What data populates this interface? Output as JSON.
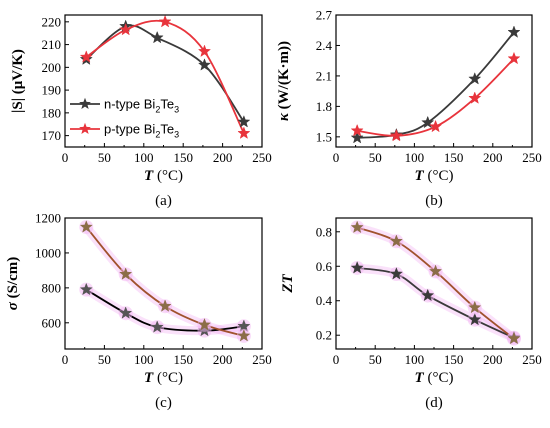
{
  "legend": {
    "entries": [
      {
        "prefix": "n-type Bi",
        "sub1": "2",
        "mid": "Te",
        "sub2": "3"
      },
      {
        "prefix": "p-type Bi",
        "sub1": "2",
        "mid": "Te",
        "sub2": "3"
      }
    ]
  },
  "chart_data": [
    {
      "type": "line",
      "caption": "(a)",
      "xlabel": {
        "sym": "T",
        "unit": " (°C)"
      },
      "ylabel": {
        "sym": "|S|",
        "unit": " (μV/K)"
      },
      "xlim": [
        0,
        250
      ],
      "ylim": [
        165,
        223
      ],
      "xticks": [
        0,
        50,
        100,
        150,
        200,
        250
      ],
      "yticks": [
        170,
        180,
        190,
        200,
        210,
        220
      ],
      "series": [
        {
          "name": "n-type Bi2Te3",
          "color": "#3a3a3a",
          "marker": "#3a3a3a",
          "x": [
            27,
            77,
            117,
            177,
            227
          ],
          "y": [
            203.5,
            218,
            213,
            201,
            176
          ]
        },
        {
          "name": "p-type Bi2Te3",
          "color": "#e8343c",
          "marker": "#e8343c",
          "x": [
            27,
            77,
            127,
            177,
            227
          ],
          "y": [
            204.5,
            216.5,
            220,
            207,
            171
          ]
        }
      ]
    },
    {
      "type": "line",
      "caption": "(b)",
      "xlabel": {
        "sym": "T",
        "unit": " (°C)"
      },
      "ylabel": {
        "sym": "κ",
        "unit": " (W/(K·m))"
      },
      "xlim": [
        0,
        250
      ],
      "ylim": [
        1.4,
        2.7
      ],
      "xticks": [
        0,
        50,
        100,
        150,
        200,
        250
      ],
      "yticks": [
        1.5,
        1.8,
        2.1,
        2.4,
        2.7
      ],
      "series": [
        {
          "name": "n-type Bi2Te3",
          "color": "#3a3a3a",
          "marker": "#3a3a3a",
          "x": [
            27,
            77,
            117,
            177,
            227
          ],
          "y": [
            1.49,
            1.52,
            1.64,
            2.07,
            2.53
          ]
        },
        {
          "name": "p-type Bi2Te3",
          "color": "#e8343c",
          "marker": "#e8343c",
          "x": [
            27,
            77,
            127,
            177,
            227
          ],
          "y": [
            1.56,
            1.51,
            1.6,
            1.88,
            2.27
          ]
        }
      ]
    },
    {
      "type": "line",
      "caption": "(c)",
      "xlabel": {
        "sym": "T",
        "unit": " (°C)"
      },
      "ylabel": {
        "sym": "σ",
        "unit": " (S/cm)"
      },
      "xlim": [
        0,
        250
      ],
      "ylim": [
        450,
        1200
      ],
      "xticks": [
        0,
        50,
        100,
        150,
        200,
        250
      ],
      "yticks": [
        600,
        800,
        1000,
        1200
      ],
      "series": [
        {
          "name": "n-type",
          "color": "#000000",
          "marker": "#555555",
          "x": [
            27,
            77,
            117,
            177,
            227
          ],
          "y": [
            790,
            655,
            575,
            555,
            580
          ]
        },
        {
          "name": "p-type",
          "color": "#a0522d",
          "marker": "#8b6d47",
          "x": [
            27,
            77,
            127,
            177,
            227
          ],
          "y": [
            1148,
            878,
            695,
            588,
            525
          ]
        }
      ]
    },
    {
      "type": "line",
      "caption": "(d)",
      "xlabel": {
        "sym": "T",
        "unit": " (°C)"
      },
      "ylabel": {
        "sym": "ZT",
        "unit": ""
      },
      "xlim": [
        0,
        250
      ],
      "ylim": [
        0.12,
        0.88
      ],
      "xticks": [
        0,
        50,
        100,
        150,
        200,
        250
      ],
      "yticks": [
        0.2,
        0.4,
        0.6,
        0.8
      ],
      "series": [
        {
          "name": "n-type",
          "color": "#3a3a3a",
          "marker": "#3a3a3a",
          "x": [
            27,
            77,
            117,
            177,
            227
          ],
          "y": [
            0.59,
            0.555,
            0.43,
            0.29,
            0.185
          ]
        },
        {
          "name": "p-type",
          "color": "#a0522d",
          "marker": "#8b6d47",
          "x": [
            27,
            77,
            127,
            177,
            227
          ],
          "y": [
            0.825,
            0.745,
            0.57,
            0.36,
            0.18
          ]
        }
      ]
    }
  ]
}
